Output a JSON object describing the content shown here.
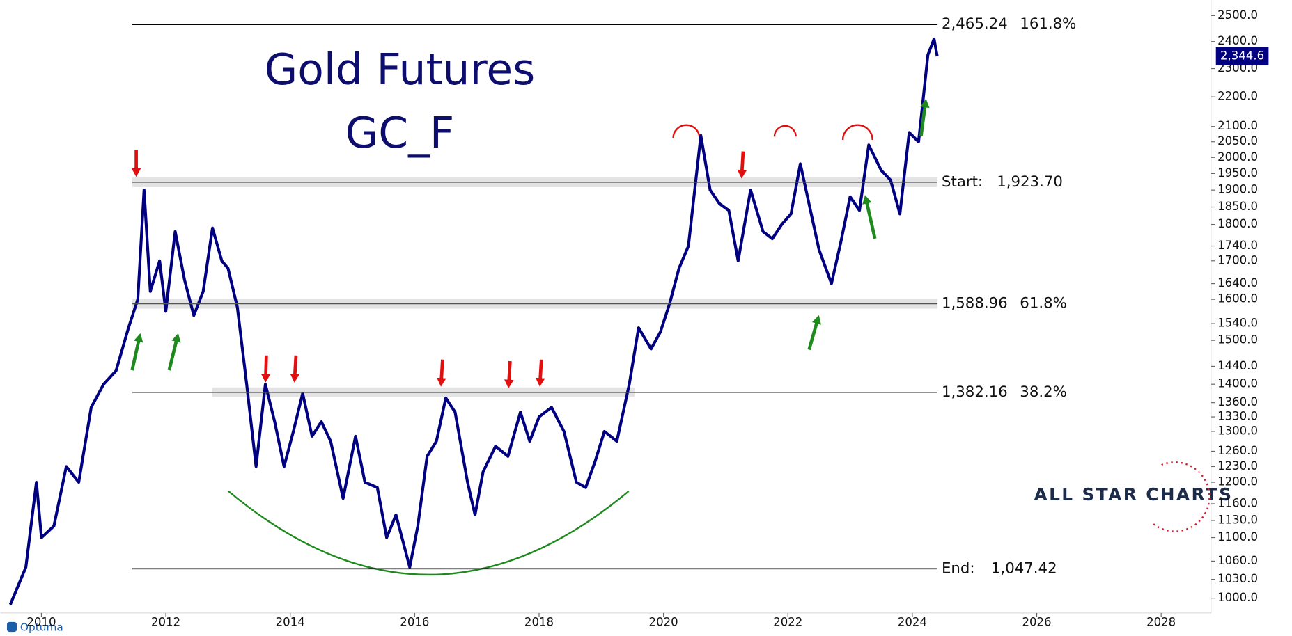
{
  "chart_data": {
    "type": "line",
    "title": "Gold Futures",
    "subtitle": "GC_F",
    "logo": "ALL STAR CHARTS",
    "brand": "Optuma",
    "color": "#000080",
    "log_scale": true,
    "x": [
      2009.5,
      2009.75,
      2009.92,
      2010.0,
      2010.2,
      2010.4,
      2010.6,
      2010.8,
      2011.0,
      2011.2,
      2011.4,
      2011.55,
      2011.65,
      2011.75,
      2011.9,
      2012.0,
      2012.15,
      2012.3,
      2012.45,
      2012.6,
      2012.75,
      2012.9,
      2013.0,
      2013.15,
      2013.3,
      2013.45,
      2013.6,
      2013.75,
      2013.9,
      2014.05,
      2014.2,
      2014.35,
      2014.5,
      2014.65,
      2014.85,
      2015.05,
      2015.2,
      2015.4,
      2015.55,
      2015.7,
      2015.92,
      2016.05,
      2016.2,
      2016.35,
      2016.5,
      2016.65,
      2016.85,
      2016.97,
      2017.1,
      2017.3,
      2017.5,
      2017.7,
      2017.85,
      2018.0,
      2018.2,
      2018.4,
      2018.6,
      2018.75,
      2018.9,
      2019.05,
      2019.25,
      2019.45,
      2019.6,
      2019.8,
      2019.95,
      2020.1,
      2020.25,
      2020.4,
      2020.6,
      2020.75,
      2020.9,
      2021.05,
      2021.2,
      2021.4,
      2021.6,
      2021.75,
      2021.9,
      2022.05,
      2022.2,
      2022.35,
      2022.5,
      2022.7,
      2022.85,
      2023.0,
      2023.15,
      2023.3,
      2023.5,
      2023.65,
      2023.8,
      2023.95,
      2024.1,
      2024.25,
      2024.35,
      2024.4
    ],
    "values": [
      990,
      1050,
      1200,
      1100,
      1120,
      1230,
      1200,
      1350,
      1400,
      1430,
      1530,
      1600,
      1900,
      1620,
      1700,
      1570,
      1780,
      1650,
      1560,
      1620,
      1790,
      1700,
      1680,
      1580,
      1400,
      1230,
      1400,
      1320,
      1230,
      1300,
      1380,
      1290,
      1320,
      1280,
      1170,
      1290,
      1200,
      1190,
      1100,
      1140,
      1050,
      1120,
      1250,
      1280,
      1370,
      1340,
      1200,
      1140,
      1220,
      1270,
      1250,
      1340,
      1280,
      1330,
      1350,
      1300,
      1200,
      1190,
      1240,
      1300,
      1280,
      1400,
      1530,
      1480,
      1520,
      1590,
      1680,
      1740,
      2070,
      1900,
      1860,
      1840,
      1700,
      1900,
      1780,
      1760,
      1800,
      1830,
      1980,
      1850,
      1730,
      1640,
      1750,
      1880,
      1840,
      2040,
      1960,
      1930,
      1830,
      2080,
      2050,
      2350,
      2410,
      2345
    ],
    "xlim": [
      2009.34,
      2028.8
    ],
    "xticks": [
      2010,
      2012,
      2014,
      2016,
      2018,
      2020,
      2022,
      2024,
      2026,
      2028
    ],
    "ylim": [
      977,
      2562
    ],
    "yticks": [
      {
        "value": 1000,
        "label": "1000.0"
      },
      {
        "value": 1030,
        "label": "1030.0"
      },
      {
        "value": 1060,
        "label": "1060.0"
      },
      {
        "value": 1100,
        "label": "1100.0"
      },
      {
        "value": 1130,
        "label": "1130.0"
      },
      {
        "value": 1160,
        "label": "1160.0"
      },
      {
        "value": 1200,
        "label": "1200.0"
      },
      {
        "value": 1230,
        "label": "1230.0"
      },
      {
        "value": 1260,
        "label": "1260.0"
      },
      {
        "value": 1300,
        "label": "1300.0"
      },
      {
        "value": 1330,
        "label": "1330.0"
      },
      {
        "value": 1360,
        "label": "1360.0"
      },
      {
        "value": 1400,
        "label": "1400.0"
      },
      {
        "value": 1440,
        "label": "1440.0"
      },
      {
        "value": 1500,
        "label": "1500.0"
      },
      {
        "value": 1540,
        "label": "1540.0"
      },
      {
        "value": 1600,
        "label": "1600.0"
      },
      {
        "value": 1640,
        "label": "1640.0"
      },
      {
        "value": 1700,
        "label": "1700.0"
      },
      {
        "value": 1740,
        "label": "1740.0"
      },
      {
        "value": 1800,
        "label": "1800.0"
      },
      {
        "value": 1850,
        "label": "1850.0"
      },
      {
        "value": 1900,
        "label": "1900.0"
      },
      {
        "value": 1950,
        "label": "1950.0"
      },
      {
        "value": 2000,
        "label": "2000.0"
      },
      {
        "value": 2050,
        "label": "2050.0"
      },
      {
        "value": 2100,
        "label": "2100.0"
      },
      {
        "value": 2200,
        "label": "2200.0"
      },
      {
        "value": 2300,
        "label": "2300.0"
      },
      {
        "value": 2400,
        "label": "2400.0"
      },
      {
        "value": 2500,
        "label": "2500.0"
      }
    ],
    "last_value": {
      "value": 2344.6,
      "label": "2,344.6"
    },
    "levels": [
      {
        "value": 2465.24,
        "label": "2,465.24",
        "pct": "161.8%"
      },
      {
        "value": 1923.7,
        "label": "1,923.70",
        "name": "Start:"
      },
      {
        "value": 1588.96,
        "label": "1,588.96",
        "pct": "61.8%"
      },
      {
        "value": 1382.16,
        "label": "1,382.16",
        "pct": "38.2%"
      },
      {
        "value": 1047.42,
        "label": "1,047.42",
        "name": "End:"
      }
    ]
  }
}
